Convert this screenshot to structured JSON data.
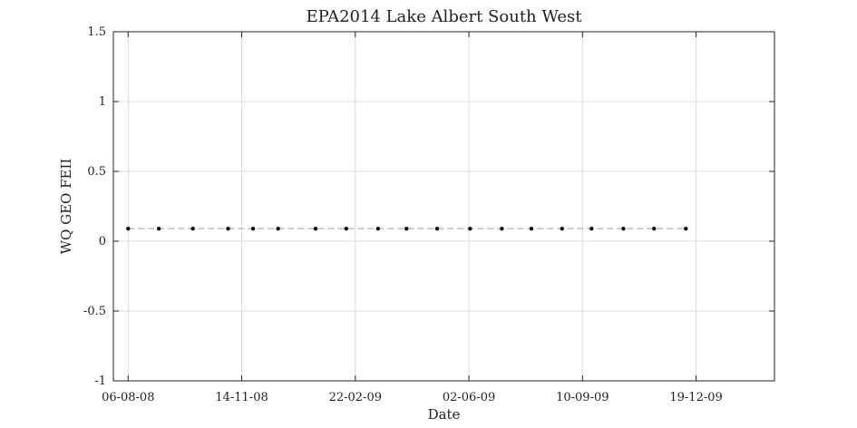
{
  "chart_data": {
    "type": "line",
    "title": "EPA2014 Lake Albert South West",
    "xlabel": "Date",
    "ylabel": "WQ GEO FEII",
    "ylim": [
      -1,
      1.5
    ],
    "y_ticks": [
      -1,
      -0.5,
      0,
      0.5,
      1,
      1.5
    ],
    "y_tick_labels": [
      "-1",
      "-0.5",
      "0",
      "0.5",
      "1",
      "1.5"
    ],
    "xlim": [
      "2008-07-24",
      "2010-02-26"
    ],
    "x_ticks": [
      "2008-08-06",
      "2008-11-14",
      "2009-02-22",
      "2009-06-02",
      "2009-09-10",
      "2009-12-19"
    ],
    "x_tick_labels": [
      "06-08-08",
      "14-11-08",
      "22-02-09",
      "02-06-09",
      "10-09-09",
      "19-12-09"
    ],
    "grid": true,
    "series": [
      {
        "name": "WQ GEO FEII",
        "style": "dashed-line-with-markers",
        "color": "#b0b0b0",
        "marker_color": "#111111",
        "x": [
          "2008-08-06",
          "2008-09-02",
          "2008-10-02",
          "2008-11-02",
          "2008-11-24",
          "2008-12-16",
          "2009-01-18",
          "2009-02-14",
          "2009-03-14",
          "2009-04-08",
          "2009-05-05",
          "2009-06-03",
          "2009-07-01",
          "2009-07-27",
          "2009-08-23",
          "2009-09-18",
          "2009-10-16",
          "2009-11-12",
          "2009-12-10"
        ],
        "values": [
          0.09,
          0.09,
          0.09,
          0.09,
          0.09,
          0.09,
          0.09,
          0.09,
          0.09,
          0.09,
          0.09,
          0.09,
          0.09,
          0.09,
          0.09,
          0.09,
          0.09,
          0.09,
          0.09
        ]
      }
    ]
  }
}
